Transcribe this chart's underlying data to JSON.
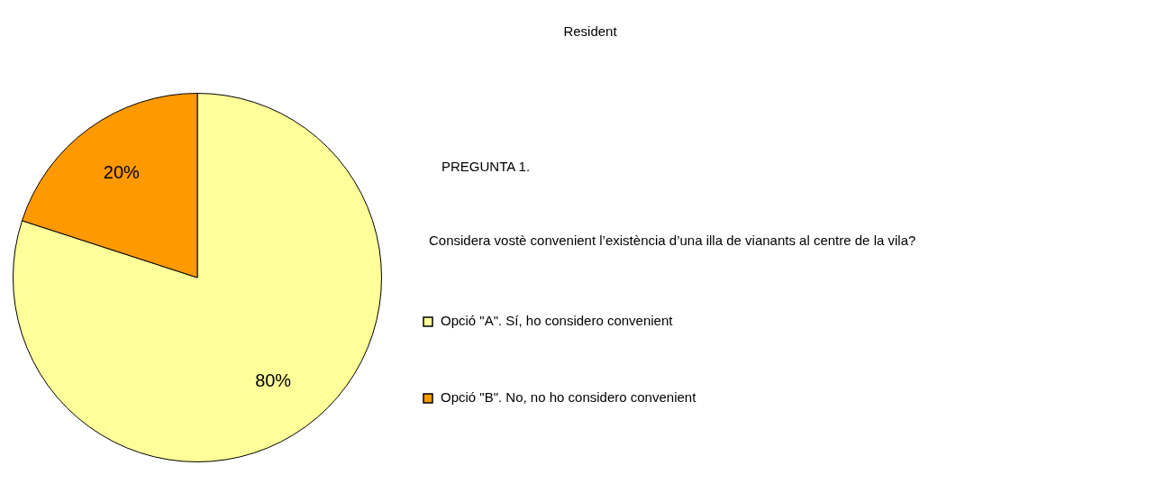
{
  "chart_data": {
    "type": "pie",
    "title": "Resident",
    "categories": [
      "Opció \"A\". Sí, ho considero convenient",
      "Opció \"B\". No, no ho considero convenient"
    ],
    "values": [
      80,
      20
    ],
    "colors": [
      "#ffff99",
      "#ff9900"
    ],
    "value_labels": [
      "80%",
      "20%"
    ],
    "annotations": [
      "PREGUNTA 1.",
      "Considera vostè convenient l’existència d’una illa de vianants al centre de la vila?"
    ],
    "legend": "right"
  }
}
